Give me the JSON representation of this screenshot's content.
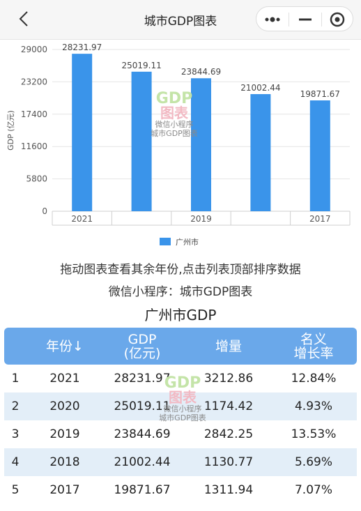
{
  "nav": {
    "title": "城市GDP图表"
  },
  "chart_data": {
    "type": "bar",
    "categories": [
      "2021",
      "2020",
      "2019",
      "2018",
      "2017"
    ],
    "x_tick_labels": [
      "2021",
      "",
      "2019",
      "",
      "2017"
    ],
    "series": [
      {
        "name": "广州市",
        "values": [
          28231.97,
          25019.11,
          23844.69,
          21002.44,
          19871.67
        ]
      }
    ],
    "data_labels": [
      "28231.97",
      "25019.11",
      "23844.69",
      "21002.44",
      "19871.67"
    ],
    "y_ticks": [
      "0",
      "5800",
      "11600",
      "17400",
      "23200",
      "29000"
    ],
    "ylabel": "GDP (亿元)",
    "ylim": [
      0,
      29000
    ],
    "grid": true,
    "legend_position": "bottom",
    "color": "#3a94ea"
  },
  "watermark": {
    "line1": "GDP",
    "line2": "图表",
    "line3": "微信小程序",
    "line4": "城市GDP图表"
  },
  "hints": {
    "line1": "拖动图表查看其余年份,点击列表顶部排序数据",
    "line2": "微信小程序：城市GDP图表"
  },
  "table": {
    "title": "广州市GDP",
    "headers": {
      "year": "年份↓",
      "gdp_line1": "GDP",
      "gdp_line2": "(亿元)",
      "increase": "增量",
      "rate_line1": "名义",
      "rate_line2": "增长率"
    },
    "rows": [
      {
        "rank": "1",
        "year": "2021",
        "gdp": "28231.97",
        "increase": "3212.86",
        "rate": "12.84%"
      },
      {
        "rank": "2",
        "year": "2020",
        "gdp": "25019.11",
        "increase": "1174.42",
        "rate": "4.93%"
      },
      {
        "rank": "3",
        "year": "2019",
        "gdp": "23844.69",
        "increase": "2842.25",
        "rate": "13.53%"
      },
      {
        "rank": "4",
        "year": "2018",
        "gdp": "21002.44",
        "increase": "1130.77",
        "rate": "5.69%"
      },
      {
        "rank": "5",
        "year": "2017",
        "gdp": "19871.67",
        "increase": "1311.94",
        "rate": "7.07%"
      }
    ]
  }
}
